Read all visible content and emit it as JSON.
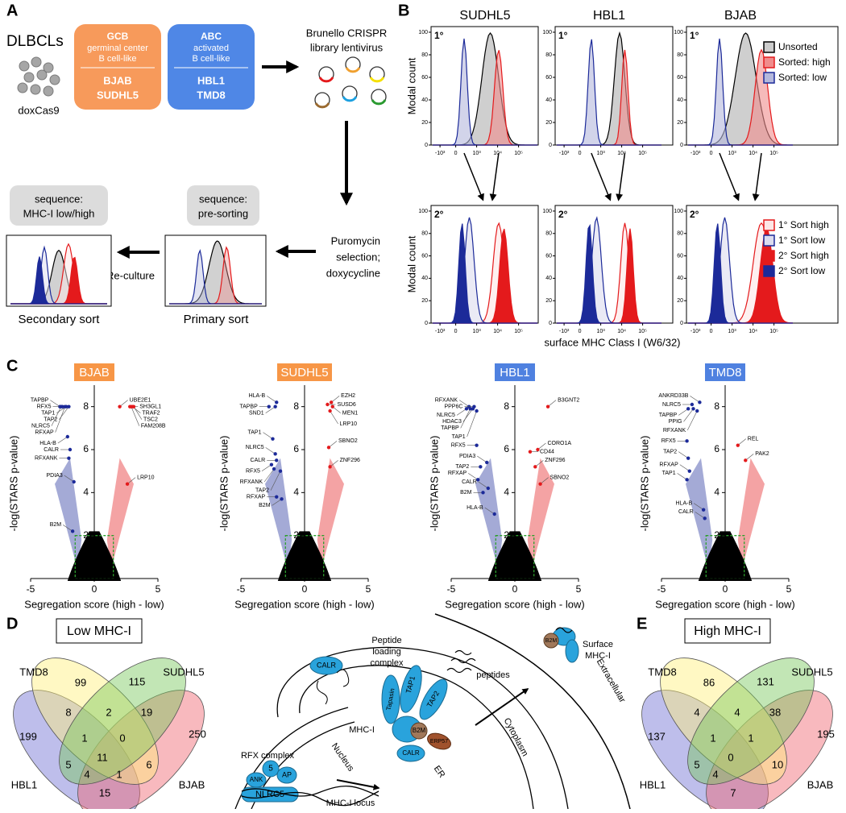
{
  "panel_labels": [
    "A",
    "B",
    "C",
    "D",
    "E"
  ],
  "panel_a": {
    "cells_title": "DLBCLs",
    "cas9": "doxCas9",
    "gcb": {
      "title": "GCB",
      "desc": [
        "germinal center",
        "B cell-like"
      ],
      "lines": [
        "BJAB",
        "SUDHL5"
      ],
      "color": "#f79a5b"
    },
    "abc": {
      "title": "ABC",
      "desc": [
        "activated",
        "B cell-like"
      ],
      "lines": [
        "HBL1",
        "TMD8"
      ],
      "color": "#4f87e6"
    },
    "library": [
      "Brunello CRISPR",
      "library lentivirus"
    ],
    "selection": [
      "Puromycin",
      "selection;",
      "doxycycline"
    ],
    "presort": [
      "sequence:",
      "pre-sorting"
    ],
    "primary": "Primary sort",
    "reculture": "Re-culture",
    "lowhigh": [
      "sequence:",
      "MHC-I low/high"
    ],
    "secondary": "Secondary sort"
  },
  "panel_b": {
    "cell_lines": [
      "SUDHL5",
      "HBL1",
      "BJAB"
    ],
    "rounds": [
      "1°",
      "2°"
    ],
    "ylabel": "Modal count",
    "ylim": [
      0,
      105
    ],
    "yticks": [
      0,
      20,
      40,
      60,
      80,
      100
    ],
    "xticks": [
      {
        "value": -1000,
        "label": "-10³"
      },
      0,
      {
        "value": 1000,
        "label": "10³"
      },
      {
        "value": 10000,
        "label": "10⁴"
      },
      {
        "value": 100000,
        "label": "10⁵"
      }
    ],
    "xlabel": "surface MHC Class I (W6/32)",
    "legend_primary": [
      {
        "name": "Unsorted",
        "fill": "#cccccc",
        "stroke": "#000000"
      },
      {
        "name": "Sorted: high",
        "fill": "#f08c8c",
        "stroke": "#e41a1c"
      },
      {
        "name": "Sorted: low",
        "fill": "#b4b8dc",
        "stroke": "#1c2a99"
      }
    ],
    "legend_secondary": [
      {
        "name": "1° Sort high",
        "fill": "#fde6e6",
        "stroke": "#e41a1c"
      },
      {
        "name": "1° Sort low",
        "fill": "#dcdcef",
        "stroke": "#1c2a99"
      },
      {
        "name": "2° Sort high",
        "fill": "#e41a1c",
        "stroke": "#e41a1c"
      },
      {
        "name": "2° Sort low",
        "fill": "#1c2a99",
        "stroke": "#1c2a99"
      }
    ]
  },
  "chart_data": [
    {
      "type": "scatter",
      "title": "BJAB",
      "title_color": "#f79646",
      "xlabel": "Segregation score (high - low)",
      "ylabel": "-log(STARS p-value)",
      "xlim": [
        -5,
        5
      ],
      "ylim": [
        0,
        9
      ],
      "xticks": [
        -5,
        0,
        5
      ],
      "yticks": [
        2,
        4,
        6,
        8
      ],
      "threshold_box": {
        "x": [
          -1.5,
          1.5
        ],
        "y": [
          0,
          2
        ]
      },
      "low_color": "#1c2a99",
      "high_color": "#e41a1c",
      "points": [
        {
          "label": "TAPBP",
          "x": -2.7,
          "y": 8
        },
        {
          "label": "RFX5",
          "x": -2.5,
          "y": 8
        },
        {
          "label": "TAP1",
          "x": -2.2,
          "y": 8
        },
        {
          "label": "TAP2",
          "x": -2.0,
          "y": 8
        },
        {
          "label": "NLRC5",
          "x": -2.6,
          "y": 8
        },
        {
          "label": "RFXAP",
          "x": -2.3,
          "y": 8
        },
        {
          "label": "HLA-B",
          "x": -2.1,
          "y": 6.6
        },
        {
          "label": "CALR",
          "x": -1.9,
          "y": 6.0
        },
        {
          "label": "RFXANK",
          "x": -2.0,
          "y": 5.6
        },
        {
          "label": "PDIA3",
          "x": -1.6,
          "y": 4.5
        },
        {
          "label": "B2M",
          "x": -1.7,
          "y": 2.2
        },
        {
          "label": "UBE2E1",
          "x": 2.0,
          "y": 8
        },
        {
          "label": "SH3GL1",
          "x": 2.8,
          "y": 8
        },
        {
          "label": "TRAF2",
          "x": 3.0,
          "y": 8
        },
        {
          "label": "TSC2",
          "x": 3.1,
          "y": 8
        },
        {
          "label": "FAM208B",
          "x": 2.9,
          "y": 8
        },
        {
          "label": "LRP10",
          "x": 2.6,
          "y": 4.4
        }
      ]
    },
    {
      "type": "scatter",
      "title": "SUDHL5",
      "title_color": "#f79646",
      "xlabel": "Segregation score (high - low)",
      "ylabel": "-log(STARS p-value)",
      "xlim": [
        -5,
        5
      ],
      "ylim": [
        0,
        9
      ],
      "xticks": [
        -5,
        0,
        5
      ],
      "yticks": [
        2,
        4,
        6,
        8
      ],
      "threshold_box": {
        "x": [
          -1.5,
          1.5
        ],
        "y": [
          0,
          2
        ]
      },
      "low_color": "#1c2a99",
      "high_color": "#e41a1c",
      "points": [
        {
          "label": "HLA-B",
          "x": -2.2,
          "y": 8.2
        },
        {
          "label": "TAPBP",
          "x": -2.8,
          "y": 8
        },
        {
          "label": "SND1",
          "x": -2.3,
          "y": 8
        },
        {
          "label": "TAP1",
          "x": -2.5,
          "y": 6.5
        },
        {
          "label": "NLRC5",
          "x": -2.3,
          "y": 5.8
        },
        {
          "label": "CALR",
          "x": -2.2,
          "y": 5.5
        },
        {
          "label": "RFX5",
          "x": -2.6,
          "y": 5.3
        },
        {
          "label": "RFXANK",
          "x": -2.4,
          "y": 5.1
        },
        {
          "label": "TAP2",
          "x": -1.9,
          "y": 5.0
        },
        {
          "label": "RFXAP",
          "x": -2.2,
          "y": 3.8
        },
        {
          "label": "B2M",
          "x": -1.8,
          "y": 3.7
        },
        {
          "label": "SUSD6",
          "x": 1.8,
          "y": 8.1
        },
        {
          "label": "EZH2",
          "x": 2.1,
          "y": 8.2
        },
        {
          "label": "MEN1",
          "x": 2.2,
          "y": 8
        },
        {
          "label": "LRP10",
          "x": 2.0,
          "y": 7.8
        },
        {
          "label": "SBNO2",
          "x": 1.9,
          "y": 6.1
        },
        {
          "label": "ZNF296",
          "x": 2.0,
          "y": 5.2
        }
      ]
    },
    {
      "type": "scatter",
      "title": "HBL1",
      "title_color": "#4f81e0",
      "xlabel": "Segregation score (high - low)",
      "ylabel": "-log(STARS p-value)",
      "xlim": [
        -5,
        5
      ],
      "ylim": [
        0,
        9
      ],
      "xticks": [
        -5,
        0,
        5
      ],
      "yticks": [
        2,
        4,
        6,
        8
      ],
      "threshold_box": {
        "x": [
          -1.5,
          1.5
        ],
        "y": [
          0,
          2
        ]
      },
      "low_color": "#1c2a99",
      "high_color": "#e41a1c",
      "points": [
        {
          "label": "RFXANK",
          "x": -3.6,
          "y": 8
        },
        {
          "label": "NLRC5",
          "x": -3.8,
          "y": 7.9
        },
        {
          "label": "PPP6C",
          "x": -3.2,
          "y": 8
        },
        {
          "label": "TAP1",
          "x": -3.0,
          "y": 7.8
        },
        {
          "label": "HDAC3",
          "x": -3.3,
          "y": 7.9
        },
        {
          "label": "TAPBP",
          "x": -3.5,
          "y": 7.9
        },
        {
          "label": "RFX5",
          "x": -3.0,
          "y": 6.2
        },
        {
          "label": "PDIA3",
          "x": -2.2,
          "y": 5.4
        },
        {
          "label": "TAP2",
          "x": -2.7,
          "y": 5.2
        },
        {
          "label": "RFXAP",
          "x": -2.9,
          "y": 4.6
        },
        {
          "label": "CALR",
          "x": -2.1,
          "y": 4.2
        },
        {
          "label": "B2M",
          "x": -2.5,
          "y": 4.0
        },
        {
          "label": "HLA-B",
          "x": -1.6,
          "y": 3.0
        },
        {
          "label": "B3GNT2",
          "x": 2.6,
          "y": 8
        },
        {
          "label": "CORO1A",
          "x": 1.8,
          "y": 6.0
        },
        {
          "label": "CD44",
          "x": 1.2,
          "y": 5.9
        },
        {
          "label": "ZNF296",
          "x": 1.6,
          "y": 5.2
        },
        {
          "label": "SBNO2",
          "x": 2.0,
          "y": 4.4
        }
      ]
    },
    {
      "type": "scatter",
      "title": "TMD8",
      "title_color": "#4f81e0",
      "xlabel": "Segregation score (high - low)",
      "ylabel": "-log(STARS p-value)",
      "xlim": [
        -5,
        5
      ],
      "ylim": [
        0,
        9
      ],
      "xticks": [
        -5,
        0,
        5
      ],
      "yticks": [
        2,
        4,
        6,
        8
      ],
      "threshold_box": {
        "x": [
          -1.5,
          1.5
        ],
        "y": [
          0,
          2
        ]
      },
      "low_color": "#1c2a99",
      "high_color": "#e41a1c",
      "points": [
        {
          "label": "ANKRD33B",
          "x": -2.0,
          "y": 8.2
        },
        {
          "label": "NLRC5",
          "x": -2.6,
          "y": 8.1
        },
        {
          "label": "TAPBP",
          "x": -2.9,
          "y": 7.9
        },
        {
          "label": "PPIG",
          "x": -2.5,
          "y": 7.9
        },
        {
          "label": "RFXANK",
          "x": -2.2,
          "y": 7.8
        },
        {
          "label": "RFX5",
          "x": -3.0,
          "y": 6.4
        },
        {
          "label": "TAP2",
          "x": -2.9,
          "y": 5.6
        },
        {
          "label": "RFXAP",
          "x": -2.8,
          "y": 5.0
        },
        {
          "label": "TAP1",
          "x": -3.0,
          "y": 4.6
        },
        {
          "label": "HLA-B",
          "x": -1.7,
          "y": 3.2
        },
        {
          "label": "CALR",
          "x": -1.6,
          "y": 2.8
        },
        {
          "label": "REL",
          "x": 1.0,
          "y": 6.2
        },
        {
          "label": "PAK2",
          "x": 1.6,
          "y": 5.5
        }
      ]
    }
  ],
  "panel_d": {
    "title": "Low MHC-I",
    "sets": [
      "TMD8",
      "SUDHL5",
      "HBL1",
      "BJAB"
    ],
    "counts": [
      99,
      115,
      199,
      250,
      8,
      2,
      19,
      1,
      0,
      5,
      11,
      6,
      4,
      1,
      15
    ]
  },
  "panel_e": {
    "title": "High MHC-I",
    "sets": [
      "TMD8",
      "SUDHL5",
      "HBL1",
      "BJAB"
    ],
    "counts": [
      86,
      131,
      137,
      195,
      4,
      4,
      38,
      1,
      1,
      5,
      0,
      10,
      4,
      null,
      7
    ]
  },
  "diagram": {
    "plc": [
      "Peptide",
      "loading",
      "complex"
    ],
    "peptides": "peptides",
    "surface": [
      "Surface",
      "MHC-I"
    ],
    "extracellular": "Extracellular",
    "cytoplasm": "Cytoplasm",
    "er": "ER",
    "nucleus": "Nucleus",
    "mhc": "MHC-I",
    "rfx": "RFX complex",
    "locus": "MHC-I locus",
    "proteins": {
      "calr": "CALR",
      "tapasin": "Tapasin",
      "tap1": "TAP1",
      "tap2": "TAP2",
      "b2m": "B2M",
      "erp57": "ERP57",
      "calr2": "CALR",
      "rfx5": "5",
      "ank": "ANK",
      "ap": "AP",
      "nlrc5": "NLRC5",
      "b2m_surface": "B2M"
    }
  }
}
